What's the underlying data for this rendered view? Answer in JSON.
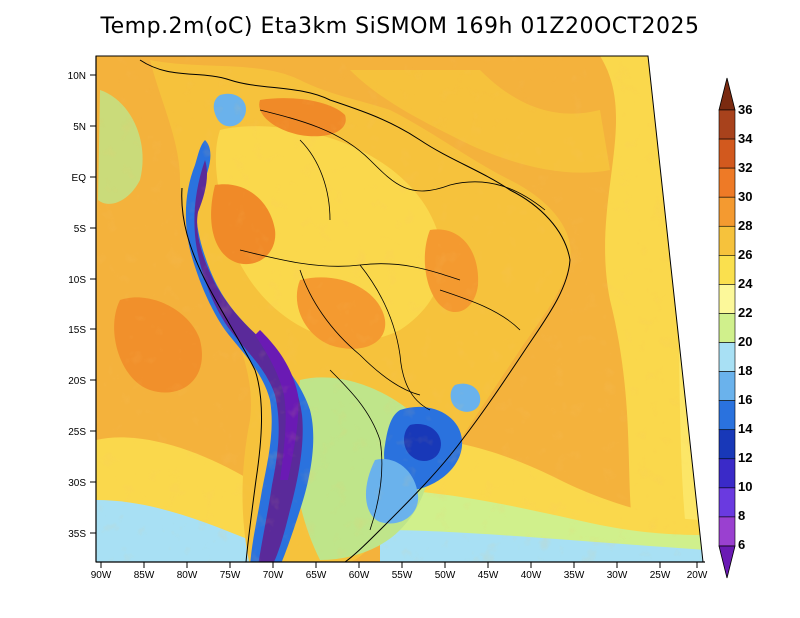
{
  "title": "Temp.2m(oC) Eta3km SiSMOM 169h 01Z20OCT2025",
  "map": {
    "lat_ticks": [
      "10N",
      "5N",
      "EQ",
      "5S",
      "10S",
      "15S",
      "20S",
      "25S",
      "30S",
      "35S"
    ],
    "lon_ticks": [
      "90W",
      "85W",
      "80W",
      "75W",
      "70W",
      "65W",
      "60W",
      "55W",
      "50W",
      "45W",
      "40W",
      "35W",
      "30W",
      "25W",
      "20W"
    ],
    "colors": {
      "ocean_warm": "#f4b23c",
      "ocean_mild": "#fad84c",
      "land_hot": "#f08a28",
      "andes": "#5a2a9a",
      "south_cold": "#2a6ad8",
      "pampa": "#bfe58a",
      "ocean_cool": "#7ec8f0"
    }
  },
  "colorbar": {
    "labels": [
      "36",
      "34",
      "32",
      "30",
      "28",
      "26",
      "24",
      "22",
      "20",
      "18",
      "16",
      "14",
      "12",
      "10",
      "8",
      "6"
    ],
    "colors": [
      "#7a2a10",
      "#a8421c",
      "#d2591e",
      "#ee7a26",
      "#f49a30",
      "#f6c23c",
      "#fae04e",
      "#fcf89a",
      "#d0f08c",
      "#a8e0f4",
      "#6ab2ec",
      "#2a72de",
      "#1838b8",
      "#3a2ac8",
      "#6a3ae0",
      "#9a40d0",
      "#6a1ab4"
    ]
  }
}
